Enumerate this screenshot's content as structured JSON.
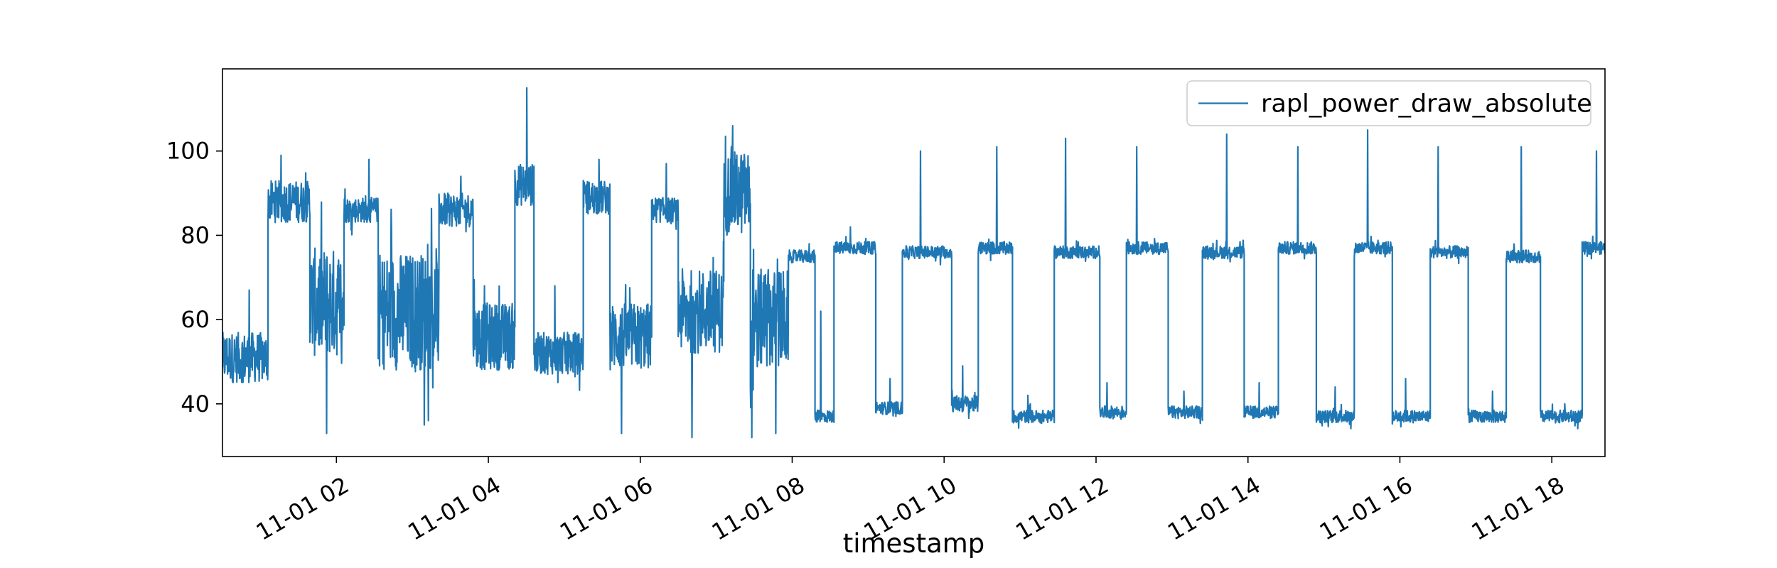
{
  "chart_data": {
    "type": "line",
    "title": "",
    "xlabel": "timestamp",
    "ylabel": "",
    "x_unit": "hours",
    "xlim": [
      0.0,
      18.2
    ],
    "ylim": [
      27.5,
      119.5
    ],
    "x_ticks": [
      {
        "value": 1.5,
        "label": "11-01 02"
      },
      {
        "value": 3.5,
        "label": "11-01 04"
      },
      {
        "value": 5.5,
        "label": "11-01 06"
      },
      {
        "value": 7.5,
        "label": "11-01 08"
      },
      {
        "value": 9.5,
        "label": "11-01 10"
      },
      {
        "value": 11.5,
        "label": "11-01 12"
      },
      {
        "value": 13.5,
        "label": "11-01 14"
      },
      {
        "value": 15.5,
        "label": "11-01 16"
      },
      {
        "value": 17.5,
        "label": "11-01 18"
      }
    ],
    "y_ticks": [
      {
        "value": 40,
        "label": "40"
      },
      {
        "value": 60,
        "label": "60"
      },
      {
        "value": 80,
        "label": "80"
      },
      {
        "value": 100,
        "label": "100"
      }
    ],
    "grid": false,
    "legend": {
      "placement": "top-right"
    },
    "series": [
      {
        "name": "rapl_power_draw_absolute",
        "color": "#1f77b4",
        "segments": [
          {
            "t0": 0.0,
            "t1": 0.6,
            "base": 51,
            "noise": 6,
            "spike": 67
          },
          {
            "t0": 0.6,
            "t1": 1.15,
            "base": 88,
            "noise": 5,
            "spike": 99
          },
          {
            "t0": 1.15,
            "t1": 1.6,
            "base": 64,
            "noise": 13,
            "spike": 33
          },
          {
            "t0": 1.6,
            "t1": 2.05,
            "base": 86,
            "noise": 3,
            "spike": 98
          },
          {
            "t0": 2.05,
            "t1": 2.85,
            "base": 62,
            "noise": 14,
            "spike": 35
          },
          {
            "t0": 2.85,
            "t1": 3.3,
            "base": 86,
            "noise": 4,
            "spike": 94
          },
          {
            "t0": 3.3,
            "t1": 3.85,
            "base": 56,
            "noise": 8,
            "spike": 68
          },
          {
            "t0": 3.85,
            "t1": 4.1,
            "base": 92,
            "noise": 5,
            "spike": 115
          },
          {
            "t0": 4.1,
            "t1": 4.75,
            "base": 52,
            "noise": 5,
            "spike": 68
          },
          {
            "t0": 4.75,
            "t1": 5.1,
            "base": 89,
            "noise": 4,
            "spike": 98
          },
          {
            "t0": 5.1,
            "t1": 5.65,
            "base": 56,
            "noise": 8,
            "spike": 33
          },
          {
            "t0": 5.65,
            "t1": 6.0,
            "base": 86,
            "noise": 3,
            "spike": 97
          },
          {
            "t0": 6.0,
            "t1": 6.6,
            "base": 62,
            "noise": 10,
            "spike": 32
          },
          {
            "t0": 6.6,
            "t1": 6.95,
            "base": 90,
            "noise": 10,
            "spike": 106
          },
          {
            "t0": 6.95,
            "t1": 7.0,
            "base": 60,
            "noise": 18,
            "spike": 32
          },
          {
            "t0": 7.0,
            "t1": 7.45,
            "base": 60,
            "noise": 12,
            "spike": 33
          },
          {
            "t0": 7.45,
            "t1": 7.8,
            "base": 75,
            "noise": 1.5,
            "spike": 78
          },
          {
            "t0": 7.8,
            "t1": 8.05,
            "base": 37,
            "noise": 1.5,
            "spike": 62
          },
          {
            "t0": 8.05,
            "t1": 8.6,
            "base": 77,
            "noise": 1.5,
            "spike": 82
          },
          {
            "t0": 8.6,
            "t1": 8.95,
            "base": 39,
            "noise": 1.5,
            "spike": 46
          },
          {
            "t0": 8.95,
            "t1": 9.6,
            "base": 76,
            "noise": 1.5,
            "spike": 100
          },
          {
            "t0": 9.6,
            "t1": 9.95,
            "base": 40,
            "noise": 2,
            "spike": 49
          },
          {
            "t0": 9.95,
            "t1": 10.4,
            "base": 77,
            "noise": 1.5,
            "spike": 101
          },
          {
            "t0": 10.4,
            "t1": 10.95,
            "base": 37,
            "noise": 1.5,
            "spike": 42
          },
          {
            "t0": 10.95,
            "t1": 11.55,
            "base": 76,
            "noise": 1.5,
            "spike": 103
          },
          {
            "t0": 11.55,
            "t1": 11.9,
            "base": 38,
            "noise": 1.5,
            "spike": 45
          },
          {
            "t0": 11.9,
            "t1": 12.45,
            "base": 77,
            "noise": 1.5,
            "spike": 101
          },
          {
            "t0": 12.45,
            "t1": 12.9,
            "base": 38,
            "noise": 1.5,
            "spike": 43
          },
          {
            "t0": 12.9,
            "t1": 13.45,
            "base": 76,
            "noise": 1.5,
            "spike": 104
          },
          {
            "t0": 13.45,
            "t1": 13.9,
            "base": 38,
            "noise": 1.5,
            "spike": 45
          },
          {
            "t0": 13.9,
            "t1": 14.4,
            "base": 77,
            "noise": 1.5,
            "spike": 101
          },
          {
            "t0": 14.4,
            "t1": 14.9,
            "base": 37,
            "noise": 1.5,
            "spike": 44
          },
          {
            "t0": 14.9,
            "t1": 15.4,
            "base": 77,
            "noise": 1.5,
            "spike": 105
          },
          {
            "t0": 15.4,
            "t1": 15.9,
            "base": 37,
            "noise": 1.5,
            "spike": 46
          },
          {
            "t0": 15.9,
            "t1": 16.4,
            "base": 76,
            "noise": 1.5,
            "spike": 101
          },
          {
            "t0": 16.4,
            "t1": 16.9,
            "base": 37,
            "noise": 1.5,
            "spike": 43
          },
          {
            "t0": 16.9,
            "t1": 17.35,
            "base": 75,
            "noise": 1.5,
            "spike": 101
          },
          {
            "t0": 17.35,
            "t1": 17.9,
            "base": 37,
            "noise": 1.5,
            "spike": 40
          },
          {
            "t0": 17.9,
            "t1": 18.2,
            "base": 77,
            "noise": 1.5,
            "spike": 100
          }
        ]
      }
    ]
  }
}
